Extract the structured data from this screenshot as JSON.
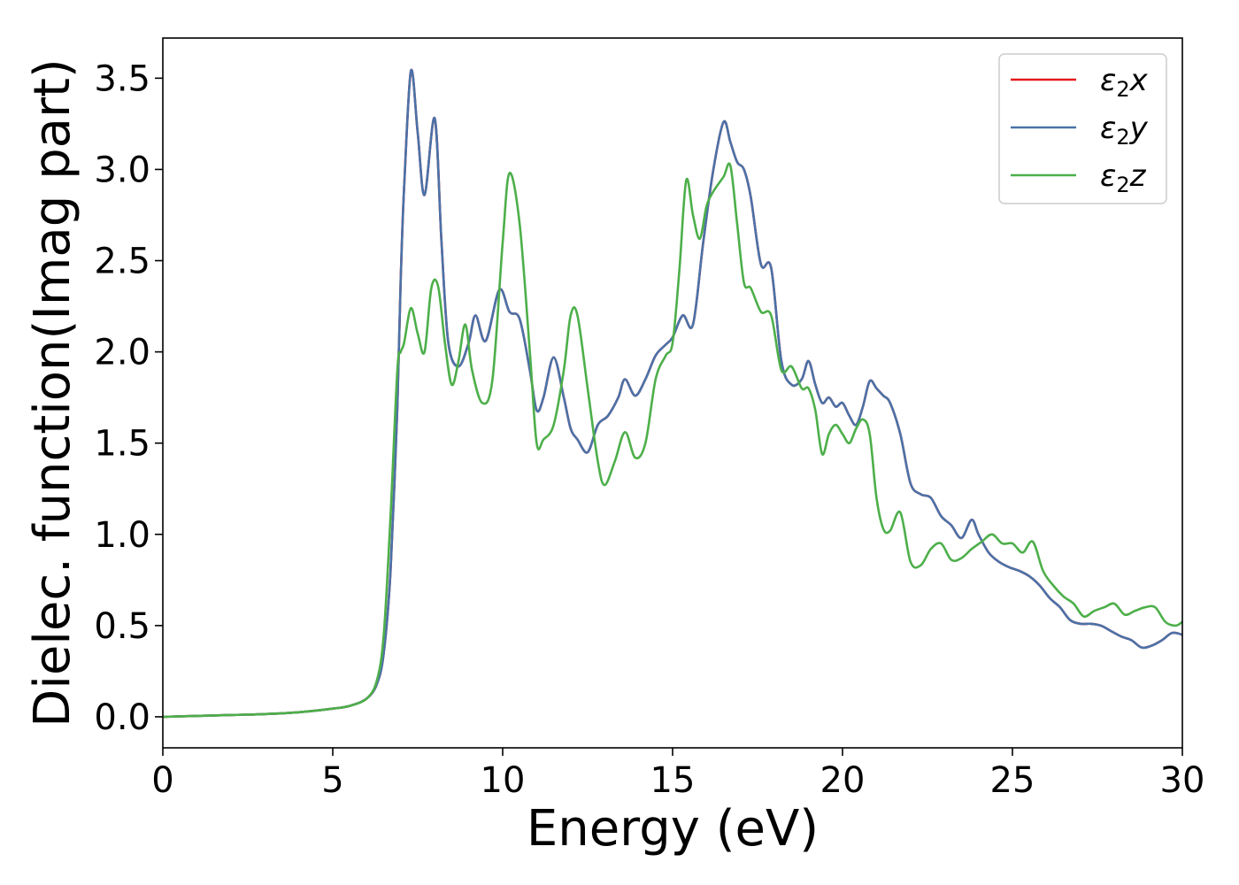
{
  "chart_data": {
    "type": "line",
    "xlabel": "Energy (eV)",
    "ylabel": "Dielec. function(Imag part)",
    "xlim": [
      0,
      30
    ],
    "ylim": [
      -0.17,
      3.72
    ],
    "xticks": [
      0,
      5,
      10,
      15,
      20,
      25,
      30
    ],
    "yticks": [
      0.0,
      0.5,
      1.0,
      1.5,
      2.0,
      2.5,
      3.0,
      3.5
    ],
    "xtick_labels": [
      "0",
      "5",
      "10",
      "15",
      "20",
      "25",
      "30"
    ],
    "ytick_labels": [
      "0.0",
      "0.5",
      "1.0",
      "1.5",
      "2.0",
      "2.5",
      "3.0",
      "3.5"
    ],
    "grid": false,
    "legend_position": "top-right",
    "series": [
      {
        "name": "ε2x",
        "legend_base": "ε",
        "legend_sub": "2",
        "legend_suffix": "x",
        "color": "#e41a1c",
        "x": [
          0,
          1,
          2,
          3,
          4,
          5,
          5.5,
          6,
          6.3,
          6.5,
          6.7,
          6.9,
          7.0,
          7.1,
          7.3,
          7.5,
          7.7,
          8.0,
          8.2,
          8.4,
          8.7,
          9.0,
          9.2,
          9.5,
          9.9,
          10.2,
          10.5,
          10.8,
          11.0,
          11.2,
          11.5,
          11.8,
          12.0,
          12.2,
          12.5,
          12.8,
          13.1,
          13.4,
          13.6,
          13.9,
          14.2,
          14.5,
          14.8,
          15.0,
          15.3,
          15.6,
          15.9,
          16.2,
          16.5,
          16.7,
          16.9,
          17.1,
          17.3,
          17.6,
          17.9,
          18.2,
          18.5,
          18.8,
          19.0,
          19.2,
          19.4,
          19.6,
          19.8,
          20.0,
          20.2,
          20.4,
          20.6,
          20.8,
          21.0,
          21.2,
          21.4,
          21.7,
          22.0,
          22.3,
          22.6,
          22.9,
          23.2,
          23.5,
          23.8,
          24.0,
          24.3,
          24.6,
          24.9,
          25.2,
          25.5,
          25.8,
          26.1,
          26.4,
          26.7,
          27.0,
          27.3,
          27.6,
          27.9,
          28.2,
          28.5,
          28.8,
          29.1,
          29.4,
          29.7,
          30
        ],
        "y": [
          0,
          0.005,
          0.01,
          0.015,
          0.025,
          0.045,
          0.06,
          0.1,
          0.18,
          0.35,
          0.8,
          1.7,
          2.4,
          2.9,
          3.54,
          3.2,
          2.86,
          3.28,
          2.6,
          2.05,
          1.92,
          2.05,
          2.2,
          2.06,
          2.34,
          2.22,
          2.18,
          1.9,
          1.68,
          1.75,
          1.97,
          1.75,
          1.58,
          1.52,
          1.45,
          1.6,
          1.65,
          1.75,
          1.85,
          1.76,
          1.85,
          1.98,
          2.04,
          2.08,
          2.2,
          2.15,
          2.6,
          3.0,
          3.26,
          3.15,
          3.04,
          3.0,
          2.85,
          2.48,
          2.46,
          1.95,
          1.82,
          1.85,
          1.95,
          1.82,
          1.72,
          1.75,
          1.7,
          1.72,
          1.65,
          1.6,
          1.7,
          1.84,
          1.8,
          1.76,
          1.72,
          1.55,
          1.28,
          1.22,
          1.2,
          1.1,
          1.05,
          0.98,
          1.08,
          1.0,
          0.9,
          0.85,
          0.82,
          0.8,
          0.77,
          0.72,
          0.65,
          0.6,
          0.53,
          0.51,
          0.51,
          0.5,
          0.47,
          0.44,
          0.42,
          0.38,
          0.39,
          0.42,
          0.46,
          0.45
        ]
      },
      {
        "name": "ε2y",
        "legend_base": "ε",
        "legend_sub": "2",
        "legend_suffix": "y",
        "color": "#4a72a8",
        "x": [
          0,
          1,
          2,
          3,
          4,
          5,
          5.5,
          6,
          6.3,
          6.5,
          6.7,
          6.9,
          7.0,
          7.1,
          7.3,
          7.5,
          7.7,
          8.0,
          8.2,
          8.4,
          8.7,
          9.0,
          9.2,
          9.5,
          9.9,
          10.2,
          10.5,
          10.8,
          11.0,
          11.2,
          11.5,
          11.8,
          12.0,
          12.2,
          12.5,
          12.8,
          13.1,
          13.4,
          13.6,
          13.9,
          14.2,
          14.5,
          14.8,
          15.0,
          15.3,
          15.6,
          15.9,
          16.2,
          16.5,
          16.7,
          16.9,
          17.1,
          17.3,
          17.6,
          17.9,
          18.2,
          18.5,
          18.8,
          19.0,
          19.2,
          19.4,
          19.6,
          19.8,
          20.0,
          20.2,
          20.4,
          20.6,
          20.8,
          21.0,
          21.2,
          21.4,
          21.7,
          22.0,
          22.3,
          22.6,
          22.9,
          23.2,
          23.5,
          23.8,
          24.0,
          24.3,
          24.6,
          24.9,
          25.2,
          25.5,
          25.8,
          26.1,
          26.4,
          26.7,
          27.0,
          27.3,
          27.6,
          27.9,
          28.2,
          28.5,
          28.8,
          29.1,
          29.4,
          29.7,
          30
        ],
        "y": [
          0,
          0.005,
          0.01,
          0.015,
          0.025,
          0.045,
          0.06,
          0.1,
          0.18,
          0.35,
          0.8,
          1.7,
          2.4,
          2.9,
          3.54,
          3.2,
          2.86,
          3.28,
          2.6,
          2.05,
          1.92,
          2.05,
          2.2,
          2.06,
          2.34,
          2.22,
          2.18,
          1.9,
          1.68,
          1.75,
          1.97,
          1.75,
          1.58,
          1.52,
          1.45,
          1.6,
          1.65,
          1.75,
          1.85,
          1.76,
          1.85,
          1.98,
          2.04,
          2.08,
          2.2,
          2.15,
          2.6,
          3.0,
          3.26,
          3.15,
          3.04,
          3.0,
          2.85,
          2.48,
          2.46,
          1.95,
          1.82,
          1.85,
          1.95,
          1.82,
          1.72,
          1.75,
          1.7,
          1.72,
          1.65,
          1.6,
          1.7,
          1.84,
          1.8,
          1.76,
          1.72,
          1.55,
          1.28,
          1.22,
          1.2,
          1.1,
          1.05,
          0.98,
          1.08,
          1.0,
          0.9,
          0.85,
          0.82,
          0.8,
          0.77,
          0.72,
          0.65,
          0.6,
          0.53,
          0.51,
          0.51,
          0.5,
          0.47,
          0.44,
          0.42,
          0.38,
          0.39,
          0.42,
          0.46,
          0.45
        ]
      },
      {
        "name": "ε2z",
        "legend_base": "ε",
        "legend_sub": "2",
        "legend_suffix": "z",
        "color": "#4daf4a",
        "x": [
          0,
          1,
          2,
          3,
          4,
          5,
          5.5,
          6,
          6.3,
          6.5,
          6.7,
          6.9,
          7.0,
          7.1,
          7.3,
          7.5,
          7.7,
          7.9,
          8.1,
          8.3,
          8.5,
          8.7,
          8.9,
          9.1,
          9.4,
          9.7,
          10.0,
          10.2,
          10.5,
          10.8,
          11.0,
          11.2,
          11.5,
          11.8,
          12.0,
          12.2,
          12.5,
          12.8,
          13.0,
          13.3,
          13.6,
          13.9,
          14.2,
          14.5,
          14.8,
          15.0,
          15.2,
          15.4,
          15.6,
          15.8,
          16.0,
          16.2,
          16.5,
          16.7,
          16.9,
          17.1,
          17.3,
          17.6,
          17.9,
          18.2,
          18.5,
          18.8,
          19.0,
          19.2,
          19.4,
          19.6,
          19.8,
          20.0,
          20.2,
          20.4,
          20.6,
          20.8,
          21.0,
          21.2,
          21.4,
          21.7,
          22.0,
          22.3,
          22.6,
          22.9,
          23.2,
          23.5,
          23.8,
          24.1,
          24.4,
          24.7,
          25.0,
          25.3,
          25.6,
          25.9,
          26.2,
          26.5,
          26.8,
          27.1,
          27.4,
          27.7,
          28.0,
          28.3,
          28.6,
          28.9,
          29.2,
          29.5,
          29.8,
          30
        ],
        "y": [
          0,
          0.005,
          0.01,
          0.015,
          0.025,
          0.045,
          0.06,
          0.1,
          0.2,
          0.45,
          1.1,
          1.9,
          2.0,
          2.05,
          2.24,
          2.1,
          2.0,
          2.35,
          2.36,
          2.05,
          1.82,
          1.95,
          2.15,
          1.9,
          1.72,
          1.85,
          2.6,
          2.98,
          2.7,
          2.0,
          1.5,
          1.52,
          1.6,
          1.9,
          2.2,
          2.2,
          1.8,
          1.4,
          1.27,
          1.4,
          1.56,
          1.42,
          1.5,
          1.85,
          1.98,
          2.05,
          2.45,
          2.94,
          2.75,
          2.62,
          2.8,
          2.88,
          2.96,
          3.02,
          2.7,
          2.38,
          2.35,
          2.22,
          2.2,
          1.9,
          1.92,
          1.8,
          1.8,
          1.68,
          1.44,
          1.55,
          1.6,
          1.55,
          1.5,
          1.58,
          1.63,
          1.55,
          1.2,
          1.03,
          1.02,
          1.12,
          0.85,
          0.83,
          0.92,
          0.95,
          0.86,
          0.87,
          0.92,
          0.96,
          1.0,
          0.95,
          0.95,
          0.9,
          0.96,
          0.8,
          0.72,
          0.66,
          0.62,
          0.55,
          0.58,
          0.6,
          0.62,
          0.56,
          0.58,
          0.6,
          0.6,
          0.52,
          0.5,
          0.52
        ]
      }
    ]
  }
}
